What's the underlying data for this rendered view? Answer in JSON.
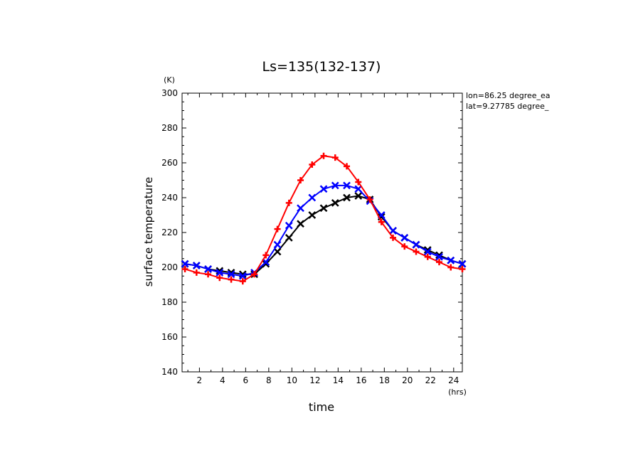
{
  "chart_data": {
    "type": "line",
    "title": "Ls=135(132-137)",
    "xlabel": "time",
    "ylabel": "surface temperature",
    "x_unit": "(hrs)",
    "y_unit": "(K)",
    "xlim": [
      0.5,
      24.75
    ],
    "ylim": [
      140,
      300
    ],
    "x_ticks": [
      2,
      4,
      6,
      8,
      10,
      12,
      14,
      16,
      18,
      20,
      22,
      24
    ],
    "y_ticks": [
      140,
      160,
      180,
      200,
      220,
      240,
      260,
      280,
      300
    ],
    "grid": false,
    "annotations": [
      "lon=86.25 degree_ea",
      "lat=9.27785 degree_"
    ],
    "x": [
      0.75,
      1.75,
      2.75,
      3.75,
      4.75,
      5.75,
      6.75,
      7.75,
      8.75,
      9.75,
      10.75,
      11.75,
      12.75,
      13.75,
      14.75,
      15.75,
      16.75,
      17.75,
      18.75,
      19.75,
      20.75,
      21.75,
      22.75,
      23.75,
      24.75
    ],
    "series": [
      {
        "color": "#000000",
        "marker": "x",
        "values": [
          202,
          201,
          199,
          198,
          197,
          196,
          196,
          202,
          209,
          217,
          225,
          230,
          234,
          237,
          240,
          241,
          239,
          229,
          221,
          217,
          213,
          210,
          207,
          204,
          202
        ]
      },
      {
        "color": "#0000ff",
        "marker": "x",
        "values": [
          202,
          201,
          199,
          197,
          196,
          195,
          197,
          203,
          213,
          224,
          234,
          240,
          245,
          247,
          247,
          245,
          238,
          230,
          221,
          217,
          213,
          209,
          206,
          204,
          202
        ]
      },
      {
        "color": "#ff0000",
        "marker": "+",
        "values": [
          199,
          197,
          196,
          194,
          193,
          192,
          196,
          207,
          222,
          237,
          250,
          259,
          264,
          263,
          258,
          249,
          239,
          226,
          217,
          212,
          209,
          206,
          203,
          200,
          199
        ]
      }
    ]
  }
}
